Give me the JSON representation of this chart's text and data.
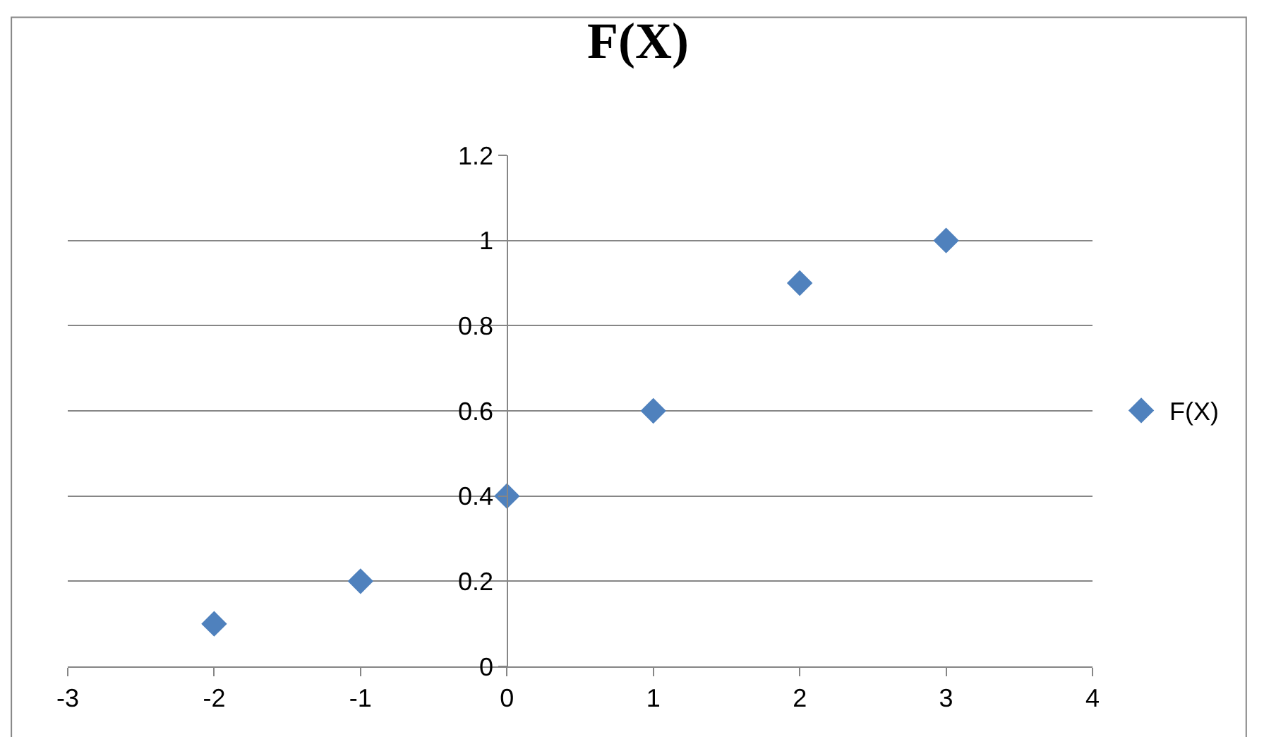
{
  "chart_data": {
    "type": "scatter",
    "title": "F(X)",
    "x": [
      -2,
      -1,
      0,
      1,
      2,
      3
    ],
    "series": [
      {
        "name": "F(X)",
        "color": "#4f81bd",
        "values": [
          0.1,
          0.2,
          0.4,
          0.6,
          0.9,
          1.0
        ]
      }
    ],
    "xlim": [
      -3,
      4
    ],
    "xticks": [
      -3,
      -2,
      -1,
      0,
      1,
      2,
      3,
      4
    ],
    "ylim": [
      0,
      1.2
    ],
    "yticks": [
      0,
      0.2,
      0.4,
      0.6,
      0.8,
      1,
      1.2
    ],
    "grid": "y",
    "legend": "right",
    "marker": "diamond"
  }
}
